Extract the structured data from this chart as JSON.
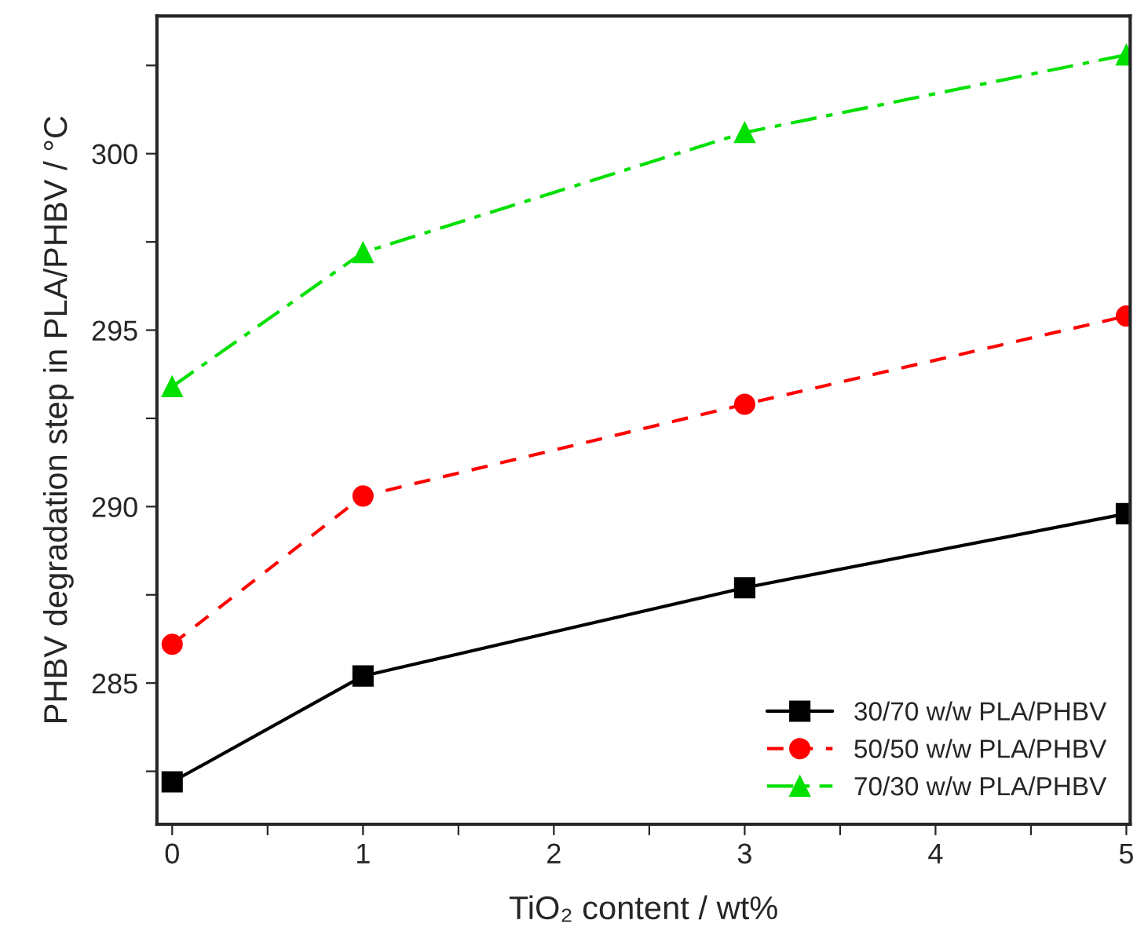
{
  "chart_data": {
    "type": "line",
    "xlabel": "TiO₂ content / wt%",
    "ylabel": "PHBV degradation step in PLA/PHBV / °C",
    "x": [
      0,
      1,
      3,
      5
    ],
    "series": [
      {
        "name": "30/70 w/w PLA/PHBV",
        "color": "#000000",
        "values": [
          282.2,
          285.2,
          287.7,
          289.8
        ],
        "marker": "square",
        "line_style": "solid"
      },
      {
        "name": "50/50 w/w PLA/PHBV",
        "color": "#ff0000",
        "values": [
          286.1,
          290.3,
          292.9,
          295.4
        ],
        "marker": "circle",
        "line_style": "dashed"
      },
      {
        "name": "70/30 w/w PLA/PHBV",
        "color": "#00e000",
        "values": [
          293.4,
          297.2,
          300.6,
          302.8
        ],
        "marker": "triangle",
        "line_style": "dashdot"
      }
    ],
    "xlim": [
      -0.08,
      5.02
    ],
    "ylim": [
      281,
      303.9
    ],
    "xticks": [
      0,
      {
        "value": 0.5,
        "label": null
      },
      1,
      {
        "value": 1.5,
        "label": null
      },
      2,
      {
        "value": 2.5,
        "label": null
      },
      3,
      {
        "value": 3.5,
        "label": null
      },
      4,
      {
        "value": 4.5,
        "label": null
      },
      5
    ],
    "yticks": [
      {
        "value": 282.5,
        "label": null
      },
      285,
      {
        "value": 287.5,
        "label": null
      },
      290,
      {
        "value": 292.5,
        "label": null
      },
      295,
      {
        "value": 297.5,
        "label": null
      },
      300,
      {
        "value": 302.5,
        "label": null
      }
    ],
    "grid": false,
    "legend": "bottom right"
  }
}
